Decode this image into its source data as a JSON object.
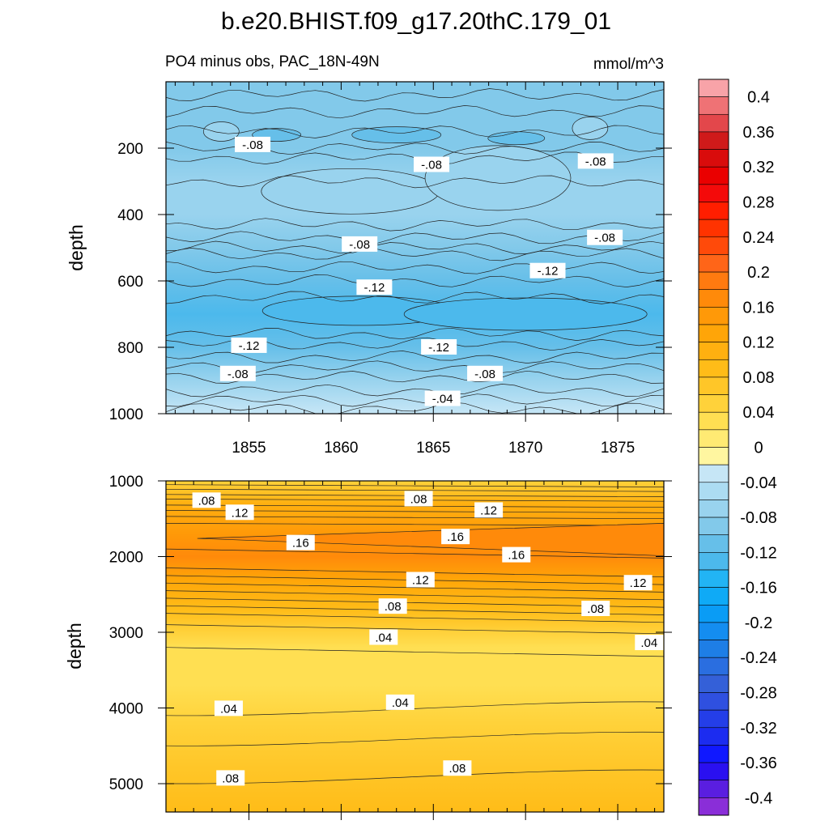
{
  "title": "b.e20.BHIST.f09_g17.20thC.179_01",
  "subtitle_left": "PO4 minus obs, PAC_18N-49N",
  "subtitle_right": "mmol/m^3",
  "chart_data": [
    {
      "type": "heatmap",
      "panel": "upper",
      "ylabel": "depth",
      "xlabel": "",
      "x_ticks": [
        "1855",
        "1860",
        "1865",
        "1870",
        "1875"
      ],
      "x_tick_values": [
        1855,
        1860,
        1865,
        1870,
        1875
      ],
      "xlim": [
        1850.5,
        1877.5
      ],
      "y_ticks": [
        "200",
        "400",
        "600",
        "800",
        "1000"
      ],
      "y_tick_values": [
        200,
        400,
        600,
        800,
        1000
      ],
      "ylim": [
        0,
        1000
      ],
      "y_reversed": true,
      "depth_profile": [
        {
          "depth": 30,
          "value": -0.1
        },
        {
          "depth": 100,
          "value": -0.1
        },
        {
          "depth": 200,
          "value": -0.09
        },
        {
          "depth": 300,
          "value": -0.07
        },
        {
          "depth": 400,
          "value": -0.08
        },
        {
          "depth": 500,
          "value": -0.09
        },
        {
          "depth": 600,
          "value": -0.12
        },
        {
          "depth": 700,
          "value": -0.13
        },
        {
          "depth": 800,
          "value": -0.12
        },
        {
          "depth": 900,
          "value": -0.08
        },
        {
          "depth": 1000,
          "value": -0.04
        }
      ],
      "contour_labels": [
        {
          "text": "-.08",
          "year": 1855.2,
          "depth": 190
        },
        {
          "text": "-.08",
          "year": 1864.9,
          "depth": 250
        },
        {
          "text": "-.08",
          "year": 1873.8,
          "depth": 240
        },
        {
          "text": "-.08",
          "year": 1861.0,
          "depth": 490
        },
        {
          "text": "-.08",
          "year": 1874.3,
          "depth": 470
        },
        {
          "text": "-.12",
          "year": 1871.2,
          "depth": 570
        },
        {
          "text": "-.12",
          "year": 1861.8,
          "depth": 620
        },
        {
          "text": "-.12",
          "year": 1855.0,
          "depth": 795
        },
        {
          "text": "-.12",
          "year": 1865.3,
          "depth": 800
        },
        {
          "text": "-.08",
          "year": 1854.4,
          "depth": 880
        },
        {
          "text": "-.08",
          "year": 1867.8,
          "depth": 880
        },
        {
          "text": "-.04",
          "year": 1865.5,
          "depth": 955
        }
      ]
    },
    {
      "type": "heatmap",
      "panel": "lower",
      "ylabel": "depth",
      "xlabel": "",
      "xlim": [
        1850.5,
        1877.5
      ],
      "y_ticks": [
        "1000",
        "2000",
        "3000",
        "4000",
        "5000"
      ],
      "y_tick_values": [
        1000,
        2000,
        3000,
        4000,
        5000
      ],
      "ylim": [
        1000,
        5375
      ],
      "y_reversed": true,
      "depth_profile": [
        {
          "depth": 1000,
          "value": 0.04
        },
        {
          "depth": 1300,
          "value": 0.1
        },
        {
          "depth": 1700,
          "value": 0.15
        },
        {
          "depth": 2000,
          "value": 0.17
        },
        {
          "depth": 2300,
          "value": 0.12
        },
        {
          "depth": 2700,
          "value": 0.08
        },
        {
          "depth": 3200,
          "value": 0.035
        },
        {
          "depth": 3700,
          "value": 0.03
        },
        {
          "depth": 4200,
          "value": 0.05
        },
        {
          "depth": 4800,
          "value": 0.07
        },
        {
          "depth": 5375,
          "value": 0.09
        }
      ],
      "contour_labels": [
        {
          "text": ".08",
          "year": 1852.7,
          "depth": 1260
        },
        {
          "text": ".12",
          "year": 1854.5,
          "depth": 1420
        },
        {
          "text": ".08",
          "year": 1864.2,
          "depth": 1240
        },
        {
          "text": ".12",
          "year": 1868.0,
          "depth": 1390
        },
        {
          "text": ".16",
          "year": 1857.8,
          "depth": 1820
        },
        {
          "text": ".16",
          "year": 1866.2,
          "depth": 1740
        },
        {
          "text": ".16",
          "year": 1869.5,
          "depth": 1980
        },
        {
          "text": ".12",
          "year": 1864.3,
          "depth": 2310
        },
        {
          "text": ".12",
          "year": 1876.1,
          "depth": 2350
        },
        {
          "text": ".08",
          "year": 1862.8,
          "depth": 2660
        },
        {
          "text": ".08",
          "year": 1873.8,
          "depth": 2690
        },
        {
          "text": ".04",
          "year": 1862.3,
          "depth": 3070
        },
        {
          "text": ".04",
          "year": 1876.7,
          "depth": 3140
        },
        {
          "text": ".04",
          "year": 1853.9,
          "depth": 4010
        },
        {
          "text": ".04",
          "year": 1863.2,
          "depth": 3930
        },
        {
          "text": ".08",
          "year": 1854.0,
          "depth": 4930
        },
        {
          "text": ".08",
          "year": 1866.3,
          "depth": 4800
        }
      ]
    }
  ],
  "colorbar": {
    "labels": [
      "0.4",
      "0.36",
      "0.32",
      "0.28",
      "0.24",
      "0.2",
      "0.16",
      "0.12",
      "0.08",
      "0.04",
      "0",
      "-0.04",
      "-0.08",
      "-0.12",
      "-0.16",
      "-0.2",
      "-0.24",
      "-0.28",
      "-0.32",
      "-0.36",
      "-0.4"
    ],
    "levels": [
      -0.4,
      -0.38,
      -0.36,
      -0.34,
      -0.32,
      -0.3,
      -0.28,
      -0.26,
      -0.24,
      -0.22,
      -0.2,
      -0.18,
      -0.16,
      -0.14,
      -0.12,
      -0.1,
      -0.08,
      -0.06,
      -0.04,
      -0.02,
      0,
      0.02,
      0.04,
      0.06,
      0.08,
      0.1,
      0.12,
      0.14,
      0.16,
      0.18,
      0.2,
      0.22,
      0.24,
      0.26,
      0.28,
      0.3,
      0.32,
      0.34,
      0.36,
      0.38,
      0.4
    ],
    "colors_top_to_bottom": [
      "#f8a3a8",
      "#ef7275",
      "#e3474b",
      "#cf1a1a",
      "#d90c0c",
      "#ea0000",
      "#f40a0a",
      "#ff1e00",
      "#ff3300",
      "#ff4a0a",
      "#ff6518",
      "#ff7a10",
      "#ff8a0a",
      "#ff9908",
      "#ffa508",
      "#ffb010",
      "#ffbc18",
      "#ffc628",
      "#ffd23a",
      "#ffdf52",
      "#ffea73",
      "#fff6a0",
      "#c6e6f6",
      "#acdcf2",
      "#99d3ee",
      "#82c9ea",
      "#66bfe9",
      "#4cb9ec",
      "#22b4f4",
      "#0faaf6",
      "#0a9cf5",
      "#148df0",
      "#1e7ee6",
      "#2a6ee0",
      "#3460d8",
      "#2f50e0",
      "#243ee8",
      "#1c2cf0",
      "#1018ff",
      "#2a10f0",
      "#5a1ee0",
      "#8a2ed8"
    ]
  }
}
